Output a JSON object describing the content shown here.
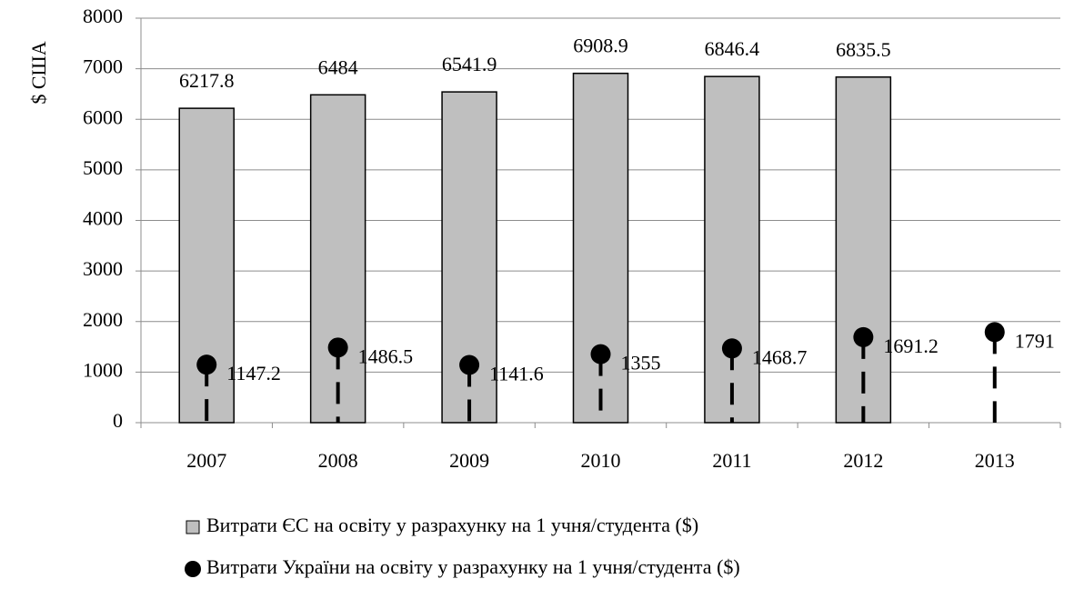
{
  "chart_data": {
    "type": "bar",
    "ylabel": "$ США",
    "categories": [
      "2007",
      "2008",
      "2009",
      "2010",
      "2011",
      "2012",
      "2013"
    ],
    "series": [
      {
        "name": "Витрати ЄС на освіту у разрахунку на 1 учня/студента ($)",
        "type": "bar",
        "color": "#bfbfbf",
        "values": [
          6217.8,
          6484,
          6541.9,
          6908.9,
          6846.4,
          6835.5,
          null
        ]
      },
      {
        "name": "Витрати України на освіту у разрахунку на 1 учня/студента ($)",
        "type": "scatter",
        "color": "#000000",
        "values": [
          1147.2,
          1486.5,
          1141.6,
          1355,
          1468.7,
          1691.2,
          1791
        ]
      }
    ],
    "ylim": [
      0,
      8000
    ],
    "yticks": [
      0,
      1000,
      2000,
      3000,
      4000,
      5000,
      6000,
      7000,
      8000
    ],
    "grid": true
  }
}
